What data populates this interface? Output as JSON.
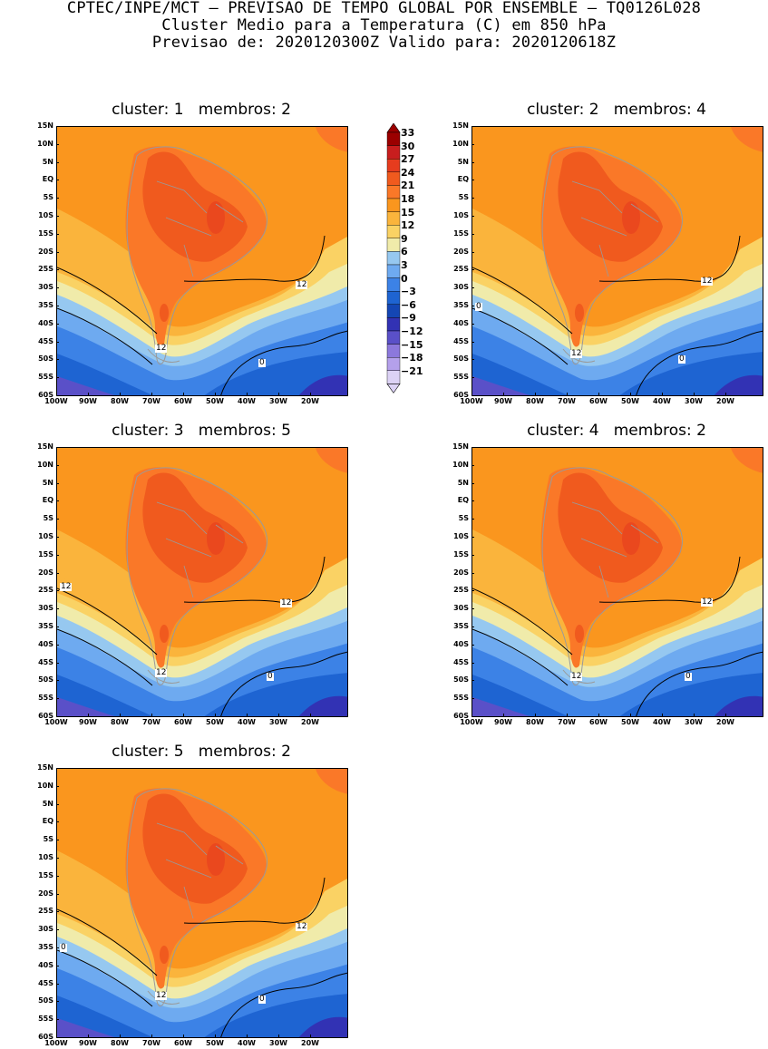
{
  "header": {
    "line1": "CPTEC/INPE/MCT — PREVISAO DE TEMPO GLOBAL POR ENSEMBLE — TQ0126L028",
    "line2": "Cluster Medio para a Temperatura (C) em 850 hPa",
    "line3": "Previsao de: 2020120300Z   Valido para: 2020120618Z"
  },
  "axes": {
    "lat_labels": [
      "15N",
      "10N",
      "5N",
      "EQ",
      "5S",
      "10S",
      "15S",
      "20S",
      "25S",
      "30S",
      "35S",
      "40S",
      "45S",
      "50S",
      "55S",
      "60S"
    ],
    "lon_labels": [
      "100W",
      "90W",
      "80W",
      "70W",
      "60W",
      "50W",
      "40W",
      "30W",
      "20W"
    ]
  },
  "colorbar": {
    "labels": [
      "33",
      "30",
      "27",
      "24",
      "21",
      "18",
      "15",
      "12",
      "9",
      "6",
      "3",
      "0",
      "−3",
      "−6",
      "−9",
      "−12",
      "−15",
      "−18",
      "−21"
    ],
    "colors": [
      "#9b0000",
      "#c81e1e",
      "#e63c1e",
      "#f05a1e",
      "#fa7828",
      "#fa961e",
      "#fab43c",
      "#fad264",
      "#f0ebaa",
      "#96c8f0",
      "#6eaaf0",
      "#3c82e6",
      "#1e64d2",
      "#1446b4",
      "#3232b4",
      "#5a50c8",
      "#8c78dc",
      "#b4a0eb",
      "#dcd2f5"
    ]
  },
  "panels": [
    {
      "title": "cluster: 1   membros: 2",
      "contours": [
        "12",
        "12",
        "0"
      ]
    },
    {
      "title": "cluster: 2   membros: 4",
      "contours": [
        "12",
        "12",
        "0",
        "0"
      ]
    },
    {
      "title": "cluster: 3   membros: 5",
      "contours": [
        "12",
        "12",
        "12",
        "0"
      ]
    },
    {
      "title": "cluster: 4   membros: 2",
      "contours": [
        "12",
        "12",
        "0"
      ]
    },
    {
      "title": "cluster: 5   membros: 2",
      "contours": [
        "12",
        "12",
        "0",
        "0"
      ]
    }
  ]
}
